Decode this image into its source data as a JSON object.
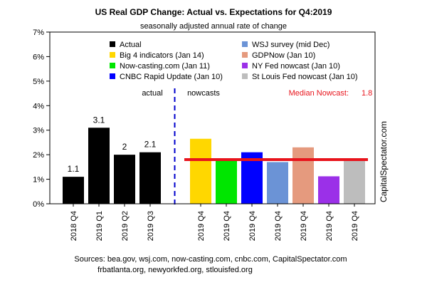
{
  "chart_data": {
    "type": "bar",
    "title": "US Real GDP Change: Actual vs. Expectations for Q4:2019",
    "subtitle": "seasonally adjusted annual rate of change",
    "ylim": [
      0,
      7
    ],
    "yticks": [
      "0%",
      "1%",
      "2%",
      "3%",
      "4%",
      "5%",
      "6%",
      "7%"
    ],
    "grid": false,
    "legend_position": "top",
    "section_labels": {
      "actual": "actual",
      "nowcasts": "nowcasts"
    },
    "median": {
      "label": "Median Nowcast:",
      "value": 1.8,
      "value_label": "1.8",
      "color": "#e8141c"
    },
    "watermark": "CapitalSpectator.com",
    "sources": [
      "Sources: bea.gov, wsj.com, now-casting.com, cnbc.com, CapitalSpectator.com",
      "frbatlanta.org, newyorkfed.org, stlouisfed.org"
    ],
    "actual_bars": [
      {
        "category": "2018 Q4",
        "value": 1.1,
        "label": "1.1"
      },
      {
        "category": "2019 Q1",
        "value": 3.1,
        "label": "3.1"
      },
      {
        "category": "2019 Q2",
        "value": 2.0,
        "label": "2"
      },
      {
        "category": "2019 Q3",
        "value": 2.1,
        "label": "2.1"
      }
    ],
    "series": [
      {
        "name": "Actual",
        "color": "#000000"
      },
      {
        "name": "Big 4 indicators (Jan 14)",
        "color": "#ffd700",
        "category": "2019 Q4",
        "value": 2.65
      },
      {
        "name": "Now-casting.com (Jan 11)",
        "color": "#00e600",
        "category": "2019 Q4",
        "value": 1.8
      },
      {
        "name": "CNBC Rapid Update (Jan 10)",
        "color": "#0000ff",
        "category": "2019 Q4",
        "value": 2.1
      },
      {
        "name": "WSJ survey (mid Dec)",
        "color": "#6b93d6",
        "category": "2019 Q4",
        "value": 1.7
      },
      {
        "name": "GDPNow (Jan 10)",
        "color": "#e59a7e",
        "category": "2019 Q4",
        "value": 2.3
      },
      {
        "name": "NY Fed nowcast (Jan 10)",
        "color": "#9b30e8",
        "category": "2019 Q4",
        "value": 1.12
      },
      {
        "name": "St Louis Fed nowcast (Jan 10)",
        "color": "#bdbdbd",
        "category": "2019 Q4",
        "value": 1.8
      }
    ]
  }
}
